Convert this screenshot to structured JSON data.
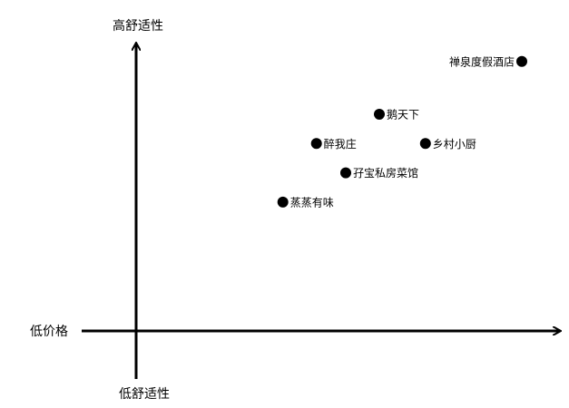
{
  "chart_data": {
    "type": "scatter",
    "title": "",
    "axes": {
      "y_top_label": "高舒适性",
      "y_bottom_label": "低舒适性",
      "x_left_label": "低价格",
      "x_right_label": ""
    },
    "xlim": [
      0,
      100
    ],
    "ylim": [
      0,
      100
    ],
    "grid": false,
    "legend": "none",
    "points": [
      {
        "label": "禅泉度假酒店",
        "x": 92,
        "y": 92,
        "label_side": "left"
      },
      {
        "label": "鹅天下",
        "x": 58,
        "y": 74,
        "label_side": "right"
      },
      {
        "label": "醉我庄",
        "x": 43,
        "y": 64,
        "label_side": "right"
      },
      {
        "label": "乡村小厨",
        "x": 69,
        "y": 64,
        "label_side": "right"
      },
      {
        "label": "孖宝私房菜馆",
        "x": 50,
        "y": 54,
        "label_side": "right"
      },
      {
        "label": "蒸蒸有味",
        "x": 35,
        "y": 44,
        "label_side": "right"
      }
    ],
    "colors": {
      "axis": "#000000",
      "point": "#000000",
      "background": "#ffffff"
    }
  }
}
